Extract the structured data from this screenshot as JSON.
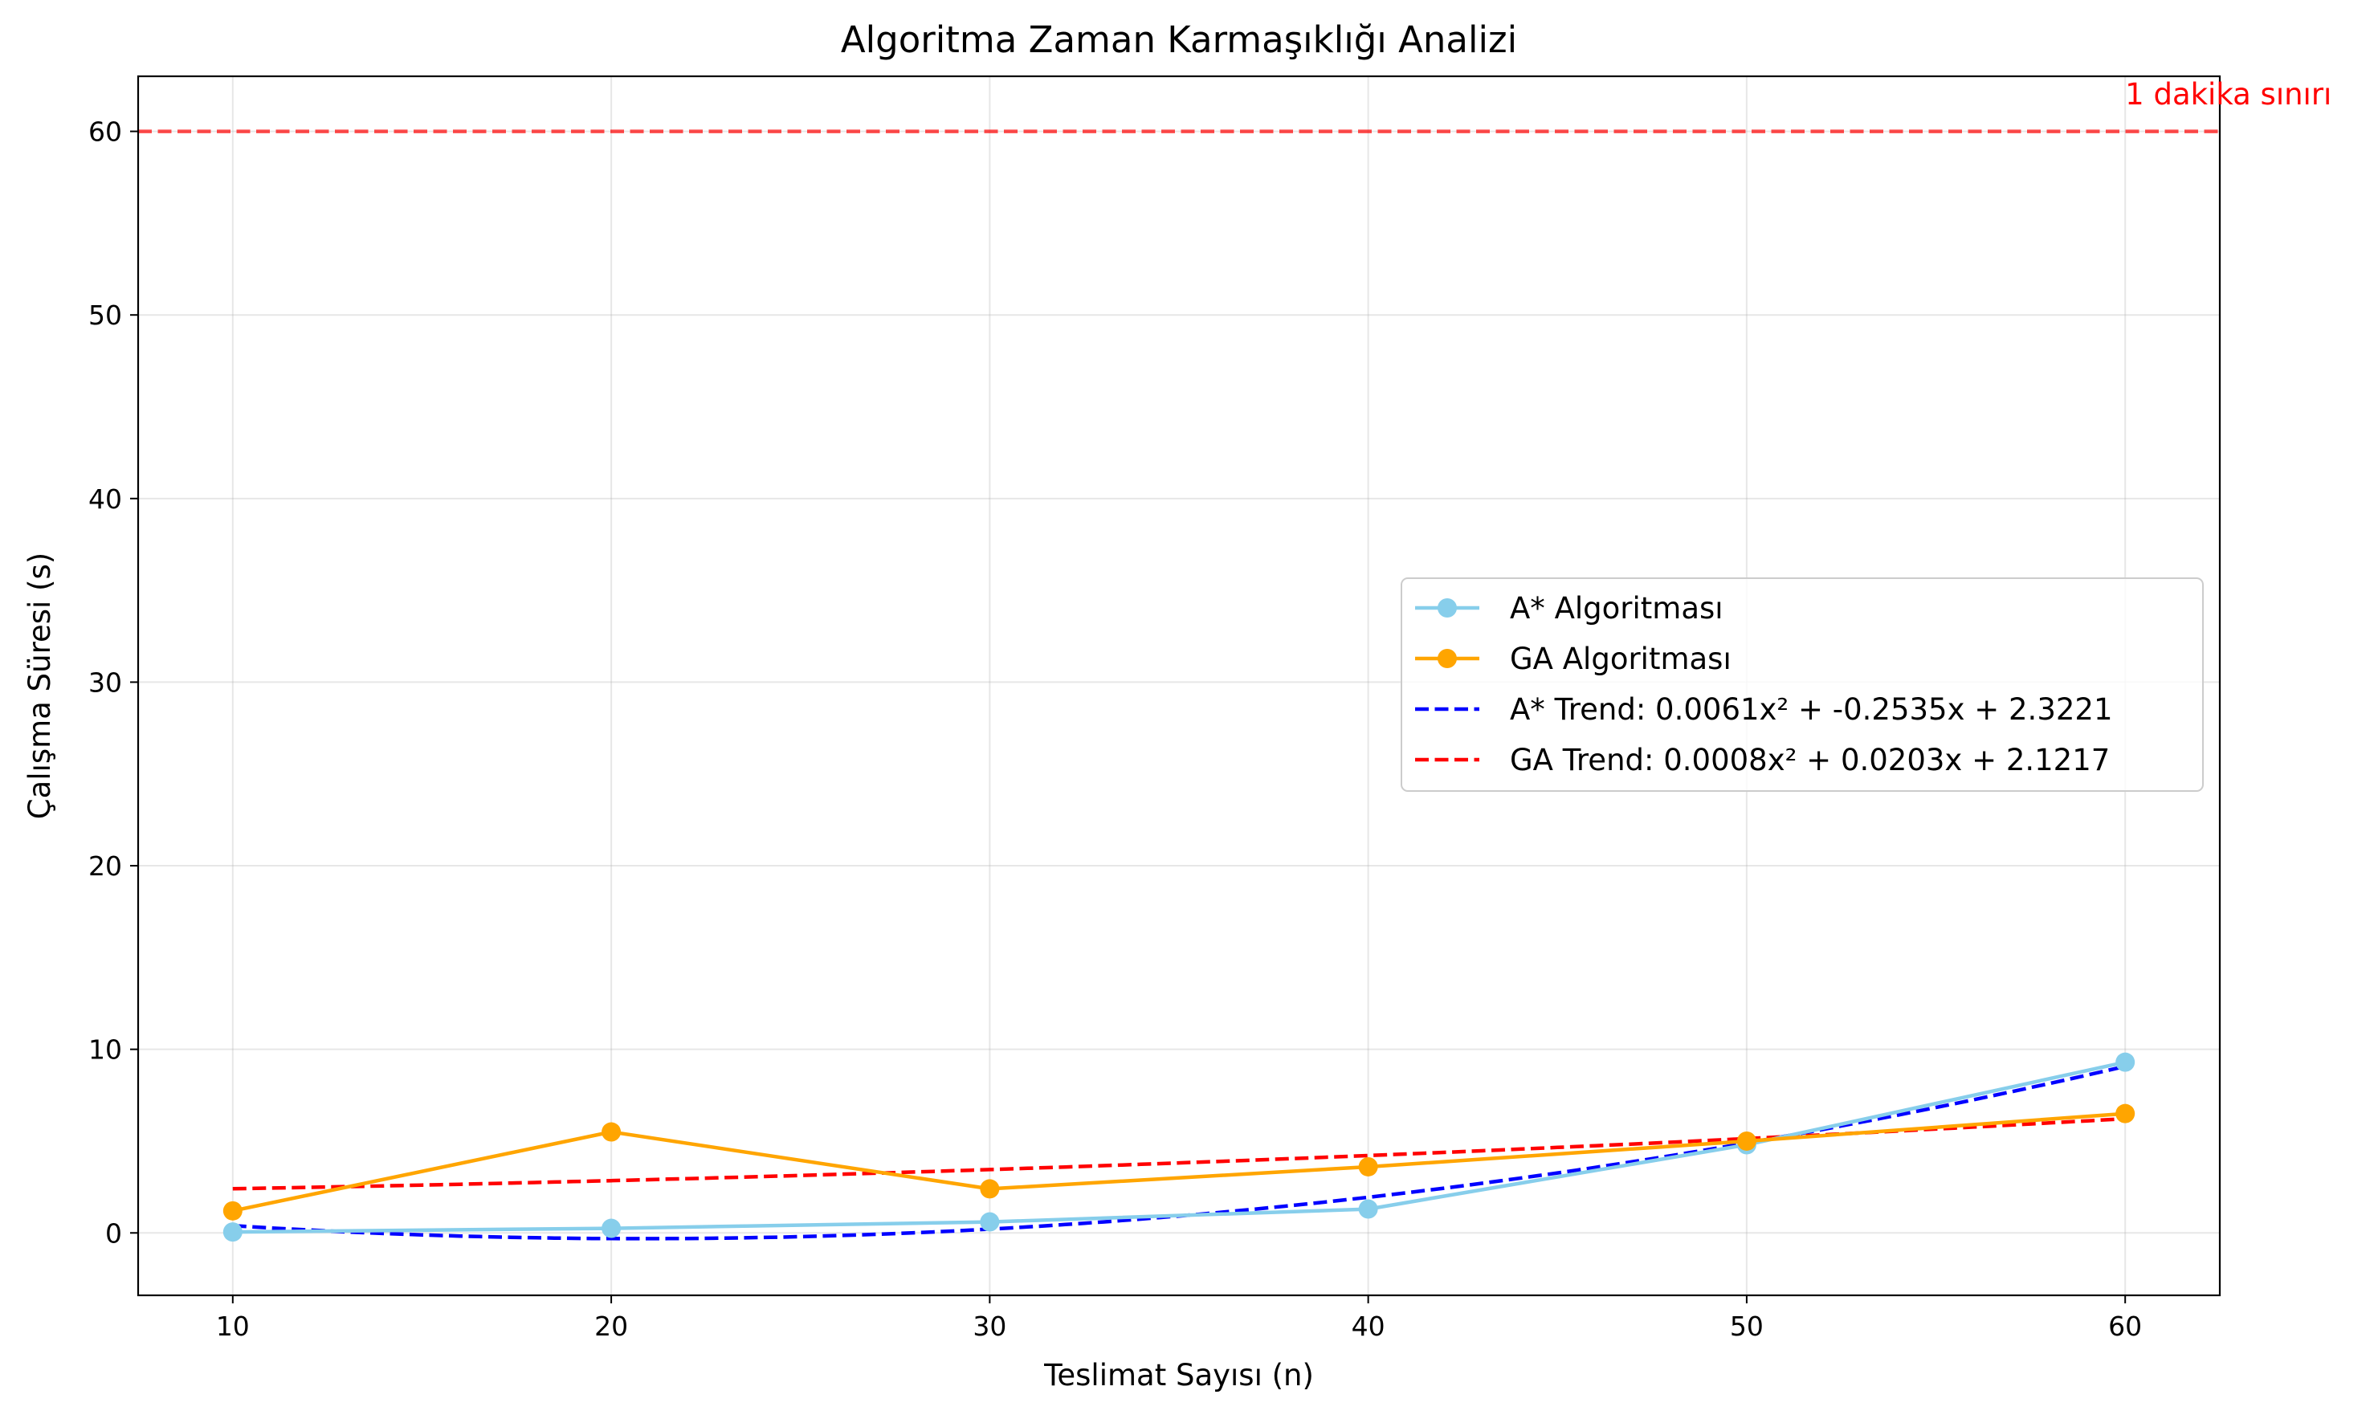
{
  "chart_data": {
    "type": "line",
    "title": "Algoritma Zaman Karmaşıklığı Analizi",
    "xlabel": "Teslimat Sayısı (n)",
    "ylabel": "Çalışma Süresi (s)",
    "xlim": [
      7.5,
      62.5
    ],
    "ylim": [
      -3.4,
      63.0
    ],
    "x_ticks": [
      10,
      20,
      30,
      40,
      50,
      60
    ],
    "y_ticks": [
      0,
      10,
      20,
      30,
      40,
      50,
      60
    ],
    "grid": true,
    "legend_position": "center-right",
    "x": [
      10,
      20,
      30,
      40,
      50,
      60
    ],
    "series": [
      {
        "name": "A* Algoritması",
        "values": [
          0.05,
          0.25,
          0.6,
          1.3,
          4.8,
          9.3
        ],
        "color": "#87ceeb",
        "style": "solid",
        "marker": "circle"
      },
      {
        "name": "GA Algoritması",
        "values": [
          1.2,
          5.5,
          2.4,
          3.6,
          5.0,
          6.5
        ],
        "color": "#ffa500",
        "style": "solid",
        "marker": "circle"
      },
      {
        "name": "A* Trend: 0.0061x² + -0.2535x + 2.3221",
        "poly": [
          0.0061,
          -0.2535,
          2.3221
        ],
        "color": "#0000ff",
        "style": "dashed"
      },
      {
        "name": "GA Trend: 0.0008x² + 0.0203x + 2.1217",
        "poly": [
          0.0008,
          0.0203,
          2.1217
        ],
        "color": "#ff0000",
        "style": "dashed"
      }
    ],
    "reference_line": {
      "y": 60,
      "label": "1 dakika sınırı",
      "color": "#ff0000"
    }
  }
}
